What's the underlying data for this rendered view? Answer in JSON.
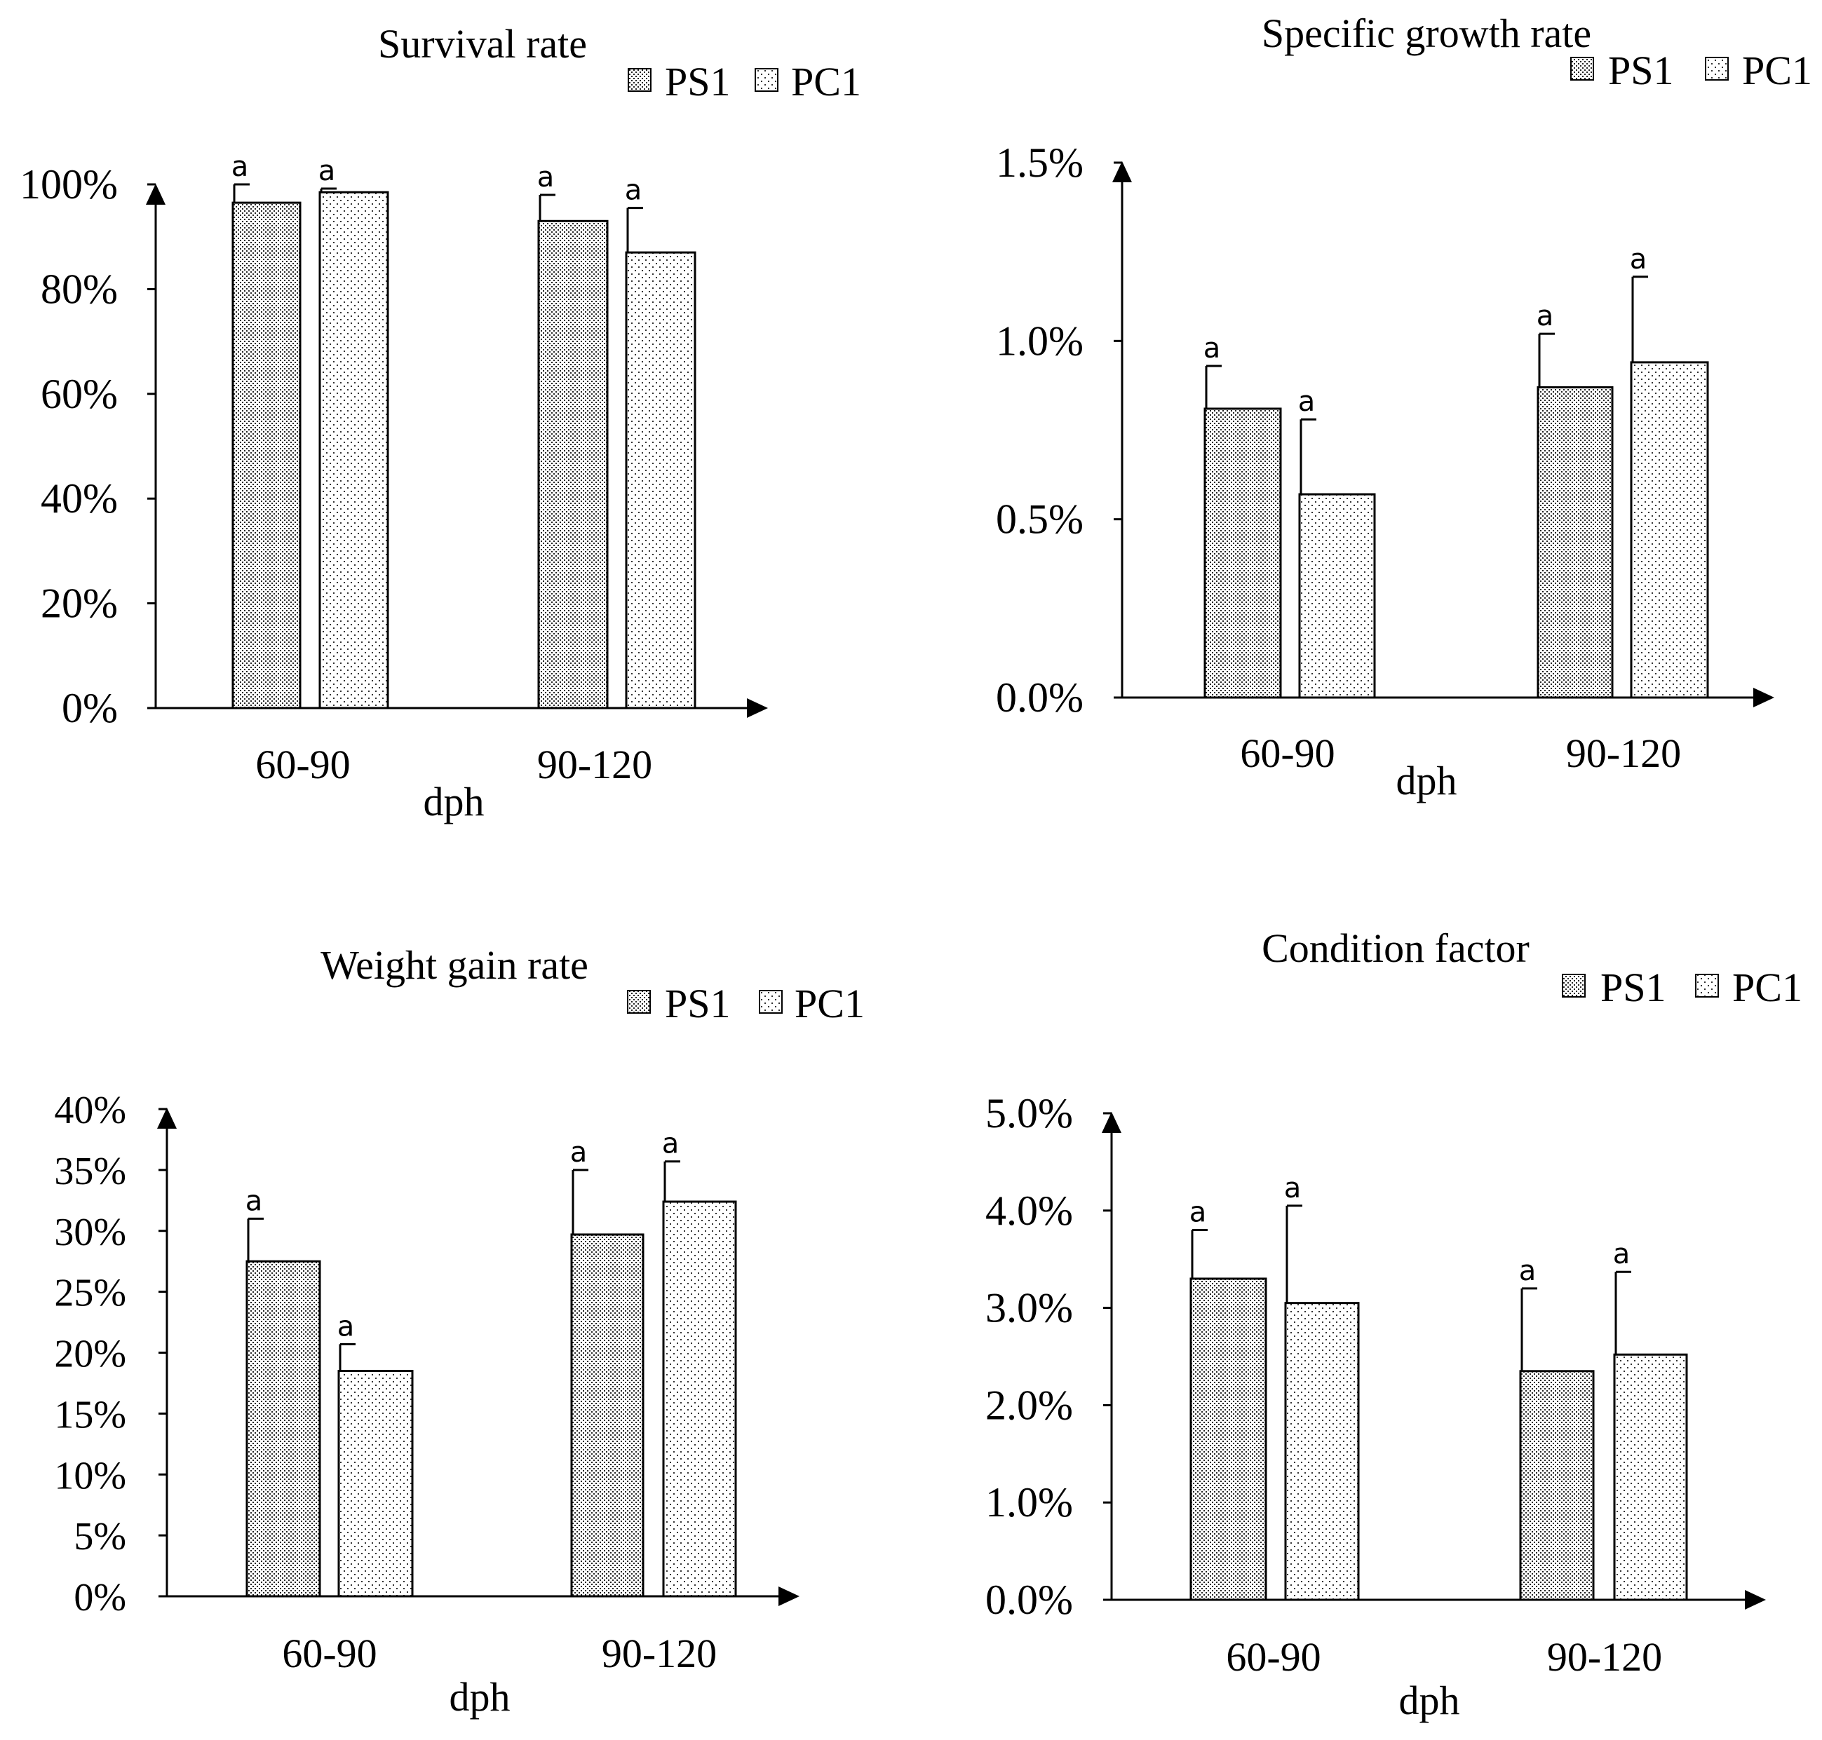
{
  "chart_data": [
    {
      "type": "bar",
      "title": "Survival rate",
      "xlabel": "dph",
      "ylabel": "",
      "categories": [
        "60-90",
        "90-120"
      ],
      "yticks": [
        "0%",
        "20%",
        "40%",
        "60%",
        "80%",
        "100%"
      ],
      "ylim": [
        0,
        100
      ],
      "series": [
        {
          "name": "PS1",
          "values": [
            96.5,
            93
          ],
          "errors": [
            3.5,
            5
          ],
          "labels": [
            "a",
            "a"
          ]
        },
        {
          "name": "PC1",
          "values": [
            98.5,
            87
          ],
          "errors": [
            0.7,
            8.5
          ],
          "labels": [
            "a",
            "a"
          ]
        }
      ]
    },
    {
      "type": "bar",
      "title": "Specific growth rate",
      "xlabel": "dph",
      "ylabel": "",
      "categories": [
        "60-90",
        "90-120"
      ],
      "yticks": [
        "0.0%",
        "0.5%",
        "1.0%",
        "1.5%"
      ],
      "ylim": [
        0,
        1.5
      ],
      "series": [
        {
          "name": "PS1",
          "values": [
            0.81,
            0.87
          ],
          "errors": [
            0.12,
            0.15
          ],
          "labels": [
            "a",
            "a"
          ]
        },
        {
          "name": "PC1",
          "values": [
            0.57,
            0.94
          ],
          "errors": [
            0.21,
            0.24
          ],
          "labels": [
            "a",
            "a"
          ]
        }
      ]
    },
    {
      "type": "bar",
      "title": "Weight gain rate",
      "xlabel": "dph",
      "ylabel": "",
      "categories": [
        "60-90",
        "90-120"
      ],
      "yticks": [
        "0%",
        "5%",
        "10%",
        "15%",
        "20%",
        "25%",
        "30%",
        "35%",
        "40%"
      ],
      "ylim": [
        0,
        40
      ],
      "series": [
        {
          "name": "PS1",
          "values": [
            27.5,
            29.7
          ],
          "errors": [
            3.5,
            5.3
          ],
          "labels": [
            "a",
            "a"
          ]
        },
        {
          "name": "PC1",
          "values": [
            18.5,
            32.4
          ],
          "errors": [
            2.2,
            3.3
          ],
          "labels": [
            "a",
            "a"
          ]
        }
      ]
    },
    {
      "type": "bar",
      "title": "Condition factor",
      "xlabel": "dph",
      "ylabel": "",
      "categories": [
        "60-90",
        "90-120"
      ],
      "yticks": [
        "0.0%",
        "1.0%",
        "2.0%",
        "3.0%",
        "4.0%",
        "5.0%"
      ],
      "ylim": [
        0,
        5
      ],
      "series": [
        {
          "name": "PS1",
          "values": [
            3.3,
            2.35
          ],
          "errors": [
            0.5,
            0.85
          ],
          "labels": [
            "a",
            "a"
          ]
        },
        {
          "name": "PC1",
          "values": [
            3.05,
            2.52
          ],
          "errors": [
            1.0,
            0.85
          ],
          "labels": [
            "a",
            "a"
          ]
        }
      ]
    }
  ]
}
